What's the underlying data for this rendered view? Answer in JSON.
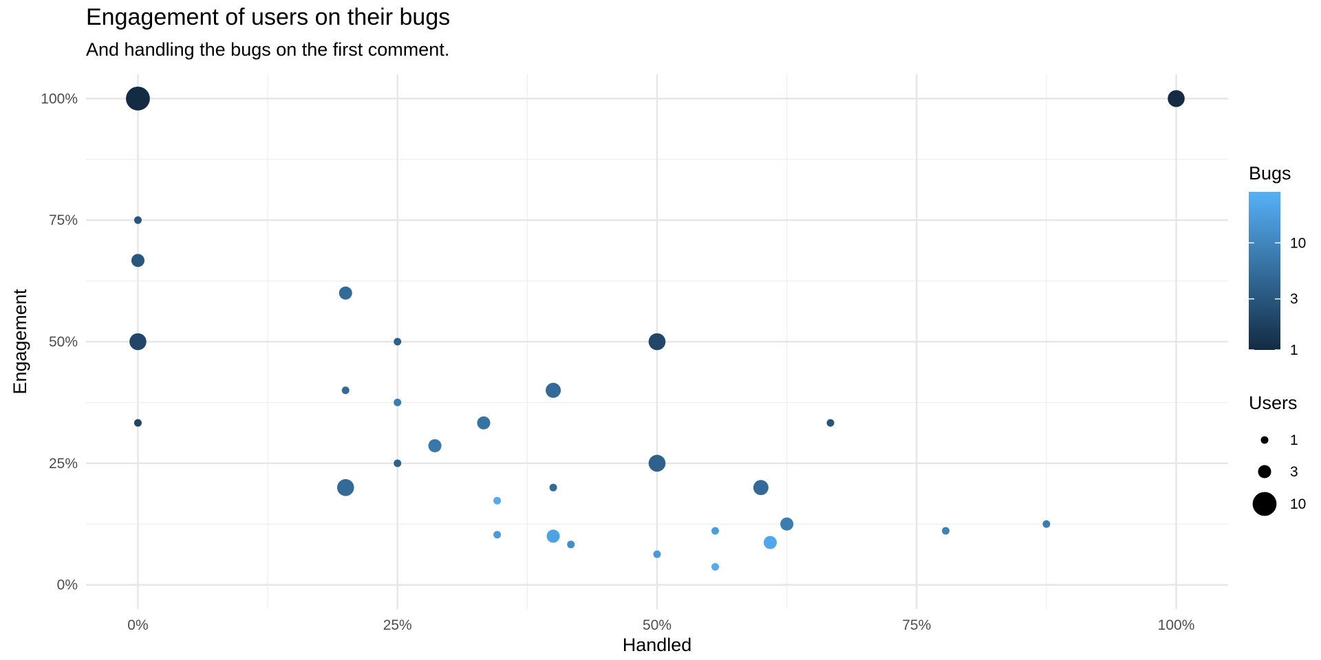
{
  "chart_data": {
    "type": "scatter",
    "title": "Engagement of users on their bugs",
    "subtitle": "And handling the bugs on the first comment.",
    "xlabel": "Handled",
    "ylabel": "Engagement",
    "xlim": [
      -0.05,
      1.05
    ],
    "ylim": [
      -0.05,
      1.05
    ],
    "x_ticks": [
      0,
      0.25,
      0.5,
      0.75,
      1
    ],
    "x_tick_labels": [
      "0%",
      "25%",
      "50%",
      "75%",
      "100%"
    ],
    "y_ticks": [
      0,
      0.25,
      0.5,
      0.75,
      1
    ],
    "y_tick_labels": [
      "0%",
      "25%",
      "50%",
      "75%",
      "100%"
    ],
    "grid": true,
    "color_legend": {
      "title": "Bugs",
      "scale": "log",
      "range": [
        1,
        30
      ],
      "low_color": "#132B43",
      "high_color": "#56B1F7",
      "breaks": [
        1,
        3,
        10
      ],
      "break_labels": [
        "1",
        "3",
        "10"
      ]
    },
    "size_legend": {
      "title": "Users",
      "breaks": [
        1,
        3,
        10
      ],
      "break_labels": [
        "1",
        "3",
        "10"
      ]
    },
    "legend_position": "right",
    "points": [
      {
        "handled": 0.0,
        "engagement": 1.0,
        "users": 10,
        "bugs": 1
      },
      {
        "handled": 1.0,
        "engagement": 1.0,
        "users": 5,
        "bugs": 1
      },
      {
        "handled": 0.0,
        "engagement": 0.75,
        "users": 1,
        "bugs": 3
      },
      {
        "handled": 0.0,
        "engagement": 0.667,
        "users": 3,
        "bugs": 3
      },
      {
        "handled": 0.0,
        "engagement": 0.5,
        "users": 5,
        "bugs": 2
      },
      {
        "handled": 0.0,
        "engagement": 0.333,
        "users": 1,
        "bugs": 2
      },
      {
        "handled": 0.2,
        "engagement": 0.6,
        "users": 3,
        "bugs": 5
      },
      {
        "handled": 0.2,
        "engagement": 0.4,
        "users": 1,
        "bugs": 5
      },
      {
        "handled": 0.2,
        "engagement": 0.2,
        "users": 5,
        "bugs": 5
      },
      {
        "handled": 0.25,
        "engagement": 0.5,
        "users": 1,
        "bugs": 4
      },
      {
        "handled": 0.25,
        "engagement": 0.375,
        "users": 1,
        "bugs": 8
      },
      {
        "handled": 0.25,
        "engagement": 0.25,
        "users": 1,
        "bugs": 4
      },
      {
        "handled": 0.286,
        "engagement": 0.286,
        "users": 3,
        "bugs": 7
      },
      {
        "handled": 0.333,
        "engagement": 0.333,
        "users": 3,
        "bugs": 6
      },
      {
        "handled": 0.346,
        "engagement": 0.173,
        "users": 1,
        "bugs": 26
      },
      {
        "handled": 0.346,
        "engagement": 0.103,
        "users": 1,
        "bugs": 17
      },
      {
        "handled": 0.4,
        "engagement": 0.4,
        "users": 4,
        "bugs": 5
      },
      {
        "handled": 0.4,
        "engagement": 0.2,
        "users": 1,
        "bugs": 5
      },
      {
        "handled": 0.4,
        "engagement": 0.1,
        "users": 3,
        "bugs": 20
      },
      {
        "handled": 0.417,
        "engagement": 0.083,
        "users": 1,
        "bugs": 12
      },
      {
        "handled": 0.5,
        "engagement": 0.5,
        "users": 5,
        "bugs": 2
      },
      {
        "handled": 0.5,
        "engagement": 0.25,
        "users": 5,
        "bugs": 4
      },
      {
        "handled": 0.5,
        "engagement": 0.063,
        "users": 1,
        "bugs": 16
      },
      {
        "handled": 0.556,
        "engagement": 0.111,
        "users": 1,
        "bugs": 18
      },
      {
        "handled": 0.556,
        "engagement": 0.037,
        "users": 1,
        "bugs": 27
      },
      {
        "handled": 0.6,
        "engagement": 0.2,
        "users": 4,
        "bugs": 5
      },
      {
        "handled": 0.609,
        "engagement": 0.087,
        "users": 3,
        "bugs": 23
      },
      {
        "handled": 0.625,
        "engagement": 0.125,
        "users": 3,
        "bugs": 8
      },
      {
        "handled": 0.667,
        "engagement": 0.333,
        "users": 1,
        "bugs": 3
      },
      {
        "handled": 0.778,
        "engagement": 0.111,
        "users": 1,
        "bugs": 9
      },
      {
        "handled": 0.875,
        "engagement": 0.125,
        "users": 1,
        "bugs": 8
      }
    ]
  }
}
